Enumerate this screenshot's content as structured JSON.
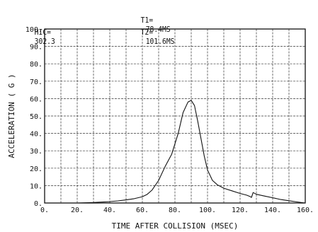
{
  "header": {
    "hic_label": "HIC=",
    "hic_value": "302.3",
    "t1_label": "T1=",
    "t1_value": "78.4MS",
    "t2_label": "T2=",
    "t2_value": "101.6MS"
  },
  "chart_data": {
    "type": "line",
    "title": "",
    "xlabel": "TIME AFTER COLLISION (MSEC)",
    "ylabel": "ACCELERATION ( G )",
    "xlim": [
      0,
      160
    ],
    "ylim": [
      0,
      100
    ],
    "grid": true,
    "x_tick_values": [
      0,
      20,
      40,
      60,
      80,
      100,
      120,
      140,
      160
    ],
    "x_tick_labels": [
      "0.",
      "20.",
      "40.",
      "60.",
      "80.",
      "100.",
      "120.",
      "140.",
      "160."
    ],
    "y_tick_values": [
      0,
      10,
      20,
      30,
      40,
      50,
      60,
      70,
      80,
      90,
      100
    ],
    "y_tick_labels": [
      "0.",
      "10.",
      "20.",
      "30.",
      "40.",
      "50.",
      "60.",
      "70.",
      "80.",
      "90.",
      "100."
    ],
    "series": [
      {
        "x": [
          0,
          10,
          20,
          30,
          40,
          45,
          50,
          55,
          60,
          63,
          66,
          70,
          74,
          78,
          82,
          85,
          88,
          90,
          92,
          94,
          96,
          98,
          100,
          103,
          106,
          110,
          115,
          120,
          124,
          126,
          127,
          128,
          130,
          135,
          140,
          145,
          150,
          155,
          160
        ],
        "y": [
          0,
          0,
          0,
          0.3,
          0.8,
          1.2,
          1.8,
          2.5,
          3.6,
          5,
          7.5,
          13,
          21,
          28,
          40,
          52,
          58,
          59,
          56,
          47,
          37,
          27,
          19,
          13,
          10.5,
          8.5,
          7,
          5.5,
          4.5,
          3.8,
          3.2,
          6,
          5,
          4,
          3,
          2,
          1.3,
          0.6,
          0
        ]
      }
    ]
  }
}
